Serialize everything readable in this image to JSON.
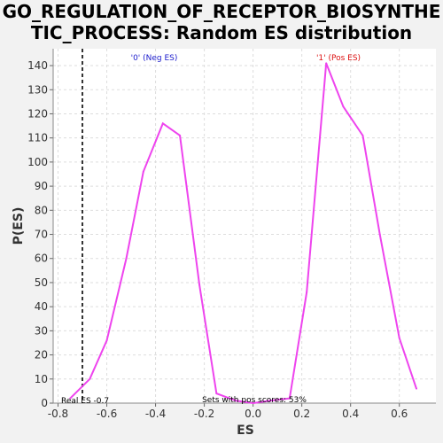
{
  "chart_data": {
    "type": "line",
    "title_line1": "GO_REGULATION_OF_RECEPTOR_BIOSYNTHE",
    "title_line2": "TIC_PROCESS: Random ES distribution",
    "xlabel": "ES",
    "ylabel": "P(ES)",
    "xlim": [
      -0.82,
      0.75
    ],
    "ylim": [
      0,
      147
    ],
    "xticks": [
      -0.8,
      -0.6,
      -0.4,
      -0.2,
      0.0,
      0.2,
      0.4,
      0.6
    ],
    "xtick_labels": [
      "-0.8",
      "-0.6",
      "-0.4",
      "-0.2",
      "0.0",
      "0.2",
      "0.4",
      "0.6"
    ],
    "yticks": [
      0,
      10,
      20,
      30,
      40,
      50,
      60,
      70,
      80,
      90,
      100,
      110,
      120,
      130,
      140
    ],
    "grid": true,
    "series": [
      {
        "color": "#ee44ee",
        "x": [
          -0.75,
          -0.67,
          -0.6,
          -0.52,
          -0.45,
          -0.37,
          -0.3,
          -0.22,
          -0.15,
          -0.07,
          0.0,
          0.07,
          0.15,
          0.22,
          0.3,
          0.37,
          0.45,
          0.52,
          0.6,
          0.67
        ],
        "y": [
          2,
          10,
          26,
          60,
          96,
          116,
          111,
          49,
          4,
          1,
          0,
          1,
          2,
          46,
          141,
          123,
          111,
          70,
          27,
          6
        ]
      }
    ],
    "real_es": -0.7,
    "annotations": {
      "neg_label": "'0' (Neg ES)",
      "pos_label": "'1' (Pos ES)",
      "real_es_label": "Real ES -0.7",
      "pos_scores_label": "Sets with pos scores: 53%"
    },
    "colors": {
      "neg": "#1a1acc",
      "pos": "#dd1111",
      "line": "#ee44ee",
      "real_es_line": "#333333"
    }
  }
}
